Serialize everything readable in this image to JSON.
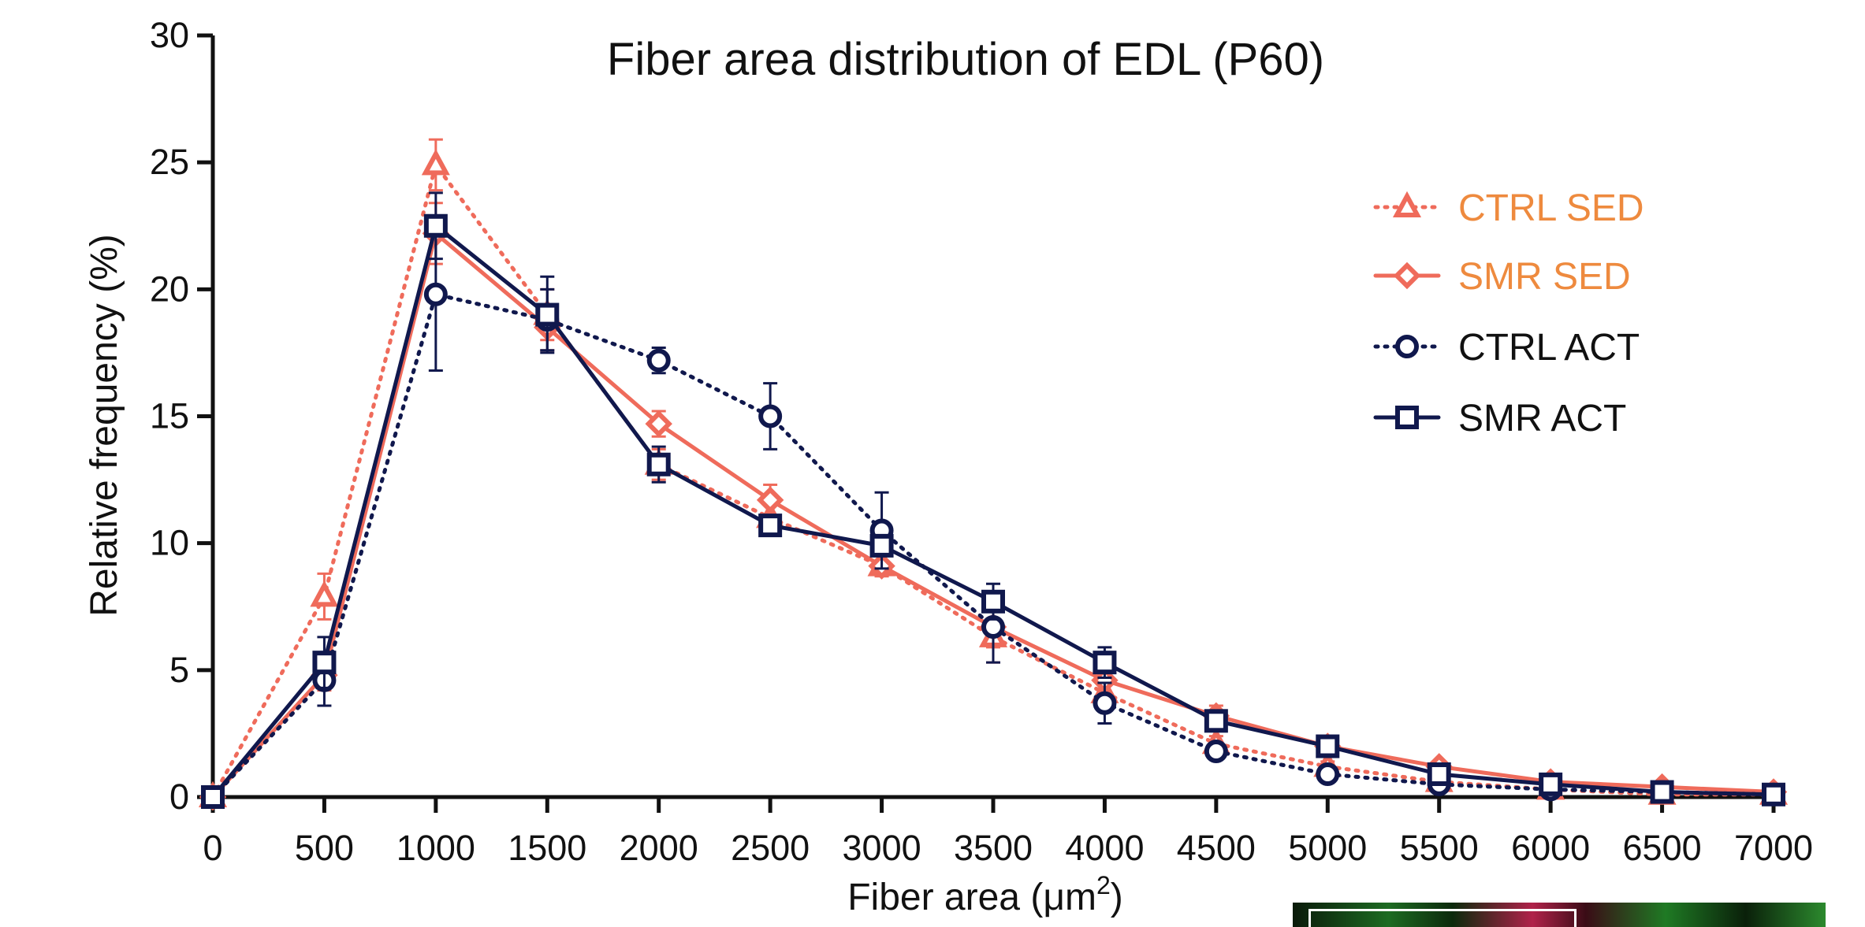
{
  "chart_data": {
    "type": "line",
    "title": "Fiber area distribution of EDL (P60)",
    "xlabel": "Fiber area (μm",
    "xlabel_superscript": "2",
    "xlabel_suffix": ")",
    "ylabel": "Relative frequency (%)",
    "x": [
      0,
      500,
      1000,
      1500,
      2000,
      2500,
      3000,
      3500,
      4000,
      4500,
      5000,
      5500,
      6000,
      6500,
      7000
    ],
    "xlim": [
      0,
      7000
    ],
    "ylim": [
      0,
      30
    ],
    "xticks": [
      "0",
      "500",
      "1000",
      "1500",
      "2000",
      "2500",
      "3000",
      "3500",
      "4000",
      "4500",
      "5000",
      "5500",
      "6000",
      "6500",
      "7000"
    ],
    "yticks": [
      "0",
      "5",
      "10",
      "15",
      "20",
      "25",
      "30"
    ],
    "grid": false,
    "legend_position": "top-right",
    "series": [
      {
        "name": "CTRL SED",
        "color": "#ef6b5b",
        "label_color": "#ee8a3e",
        "line_style": "dotted",
        "marker": "triangle",
        "values": [
          0,
          7.9,
          24.9,
          19.0,
          13.1,
          11.0,
          9.1,
          6.3,
          4.1,
          2.1,
          1.2,
          0.6,
          0.3,
          0.1,
          0.1
        ],
        "errors": [
          0,
          0.9,
          1.0,
          1.0,
          0.6,
          0.5,
          0.4,
          1.0,
          0.6,
          0.3,
          0.2,
          0.1,
          0.1,
          0.05,
          0.05
        ]
      },
      {
        "name": "SMR SED",
        "color": "#ef6b5b",
        "label_color": "#ee8a3e",
        "line_style": "solid",
        "marker": "diamond",
        "values": [
          0,
          4.8,
          22.2,
          18.5,
          14.7,
          11.7,
          9.1,
          6.7,
          4.6,
          3.2,
          2.0,
          1.2,
          0.6,
          0.4,
          0.2
        ],
        "errors": [
          0,
          0.6,
          1.2,
          0.9,
          0.5,
          0.6,
          0.4,
          0.8,
          0.6,
          0.4,
          0.3,
          0.2,
          0.1,
          0.1,
          0.05
        ]
      },
      {
        "name": "CTRL ACT",
        "color": "#10184d",
        "label_color": "#111111",
        "line_style": "dotted",
        "marker": "circle",
        "values": [
          0,
          4.6,
          19.8,
          18.8,
          17.2,
          15.0,
          10.5,
          6.7,
          3.7,
          1.8,
          0.9,
          0.5,
          0.3,
          0.2,
          0.1
        ],
        "errors": [
          0,
          1.0,
          3.0,
          1.2,
          0.5,
          1.3,
          1.5,
          1.4,
          0.8,
          0.3,
          0.2,
          0.1,
          0.1,
          0.05,
          0.05
        ]
      },
      {
        "name": "SMR ACT",
        "color": "#10184d",
        "label_color": "#111111",
        "line_style": "solid",
        "marker": "square",
        "values": [
          0,
          5.3,
          22.5,
          19.0,
          13.1,
          10.7,
          9.9,
          7.7,
          5.3,
          3.0,
          2.0,
          0.9,
          0.5,
          0.2,
          0.1
        ],
        "errors": [
          0,
          1.0,
          1.3,
          1.5,
          0.7,
          0.3,
          0.4,
          0.7,
          0.6,
          0.4,
          0.3,
          0.2,
          0.1,
          0.05,
          0.05
        ]
      }
    ]
  }
}
